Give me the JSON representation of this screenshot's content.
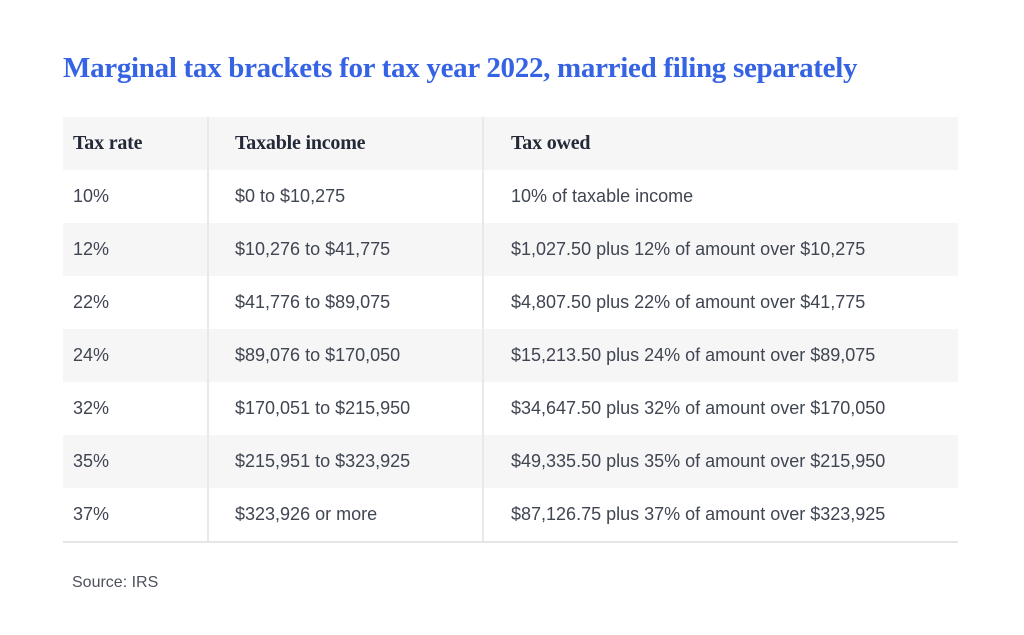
{
  "title": "Marginal tax brackets for tax year 2022, married filing separately",
  "source": "Source: IRS",
  "colors": {
    "title_blue": "#3563e3",
    "header_text": "#232936",
    "body_text": "#3f4551",
    "row_alt_bg": "#f6f6f7",
    "divider": "#e9e9eb",
    "source_text": "#4c515b"
  },
  "chart_data": {
    "type": "table",
    "title": "Marginal tax brackets for tax year 2022, married filing separately",
    "columns": [
      "Tax rate",
      "Taxable income",
      "Tax owed"
    ],
    "rows": [
      [
        "10%",
        "$0 to $10,275",
        "10% of taxable income"
      ],
      [
        "12%",
        "$10,276 to $41,775",
        "$1,027.50 plus 12% of amount over $10,275"
      ],
      [
        "22%",
        "$41,776 to $89,075",
        "$4,807.50 plus 22% of amount over $41,775"
      ],
      [
        "24%",
        "$89,076 to $170,050",
        "$15,213.50 plus 24% of amount over $89,075"
      ],
      [
        "32%",
        "$170,051 to $215,950",
        "$34,647.50 plus 32% of amount over $170,050"
      ],
      [
        "35%",
        "$215,951 to $323,925",
        "$49,335.50 plus 35% of amount over $215,950"
      ],
      [
        "37%",
        "$323,926 or more",
        "$87,126.75 plus 37% of amount over $323,925"
      ]
    ],
    "source": "Source: IRS",
    "layout": {
      "shaded_rows": "header, 12%, 24%, 35%",
      "grid": "vertical column dividers only, bottom border"
    }
  }
}
